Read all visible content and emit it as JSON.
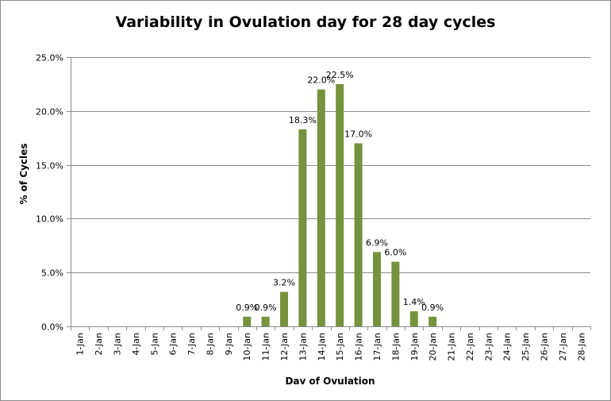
{
  "chart_data": {
    "type": "bar",
    "title": "Variability in Ovulation day for 28 day cycles",
    "xlabel": "Dav of Ovulation",
    "ylabel": "% of Cycles",
    "ylim": [
      0,
      25
    ],
    "y_ticks": [
      "0.0%",
      "5.0%",
      "10.0%",
      "15.0%",
      "20.0%",
      "25.0%"
    ],
    "y_tick_values": [
      0,
      5,
      10,
      15,
      20,
      25
    ],
    "grid": true,
    "legend": "none",
    "bar_color": "#76923c",
    "categories": [
      "1-Jan",
      "2-Jan",
      "3-Jan",
      "4-Jan",
      "5-Jan",
      "6-Jan",
      "7-Jan",
      "8-Jan",
      "9-Jan",
      "10-Jan",
      "11-Jan",
      "12-Jan",
      "13-Jan",
      "14-Jan",
      "15-Jan",
      "16-Jan",
      "17-Jan",
      "18-Jan",
      "19-Jan",
      "20-Jan",
      "21-Jan",
      "22-Jan",
      "23-Jan",
      "24-Jan",
      "25-Jan",
      "26-Jan",
      "27-Jan",
      "28-Jan"
    ],
    "values": [
      0,
      0,
      0,
      0,
      0,
      0,
      0,
      0,
      0,
      0.9,
      0.9,
      3.2,
      18.3,
      22.0,
      22.5,
      17.0,
      6.9,
      6.0,
      1.4,
      0.9,
      0,
      0,
      0,
      0,
      0,
      0,
      0,
      0
    ],
    "data_labels": [
      "",
      "",
      "",
      "",
      "",
      "",
      "",
      "",
      "",
      "0.9%",
      "0.9%",
      "3.2%",
      "18.3%",
      "22.0%",
      "22.5%",
      "17.0%",
      "6.9%",
      "6.0%",
      "1.4%",
      "0.9%",
      "",
      "",
      "",
      "",
      "",
      "",
      "",
      ""
    ]
  }
}
